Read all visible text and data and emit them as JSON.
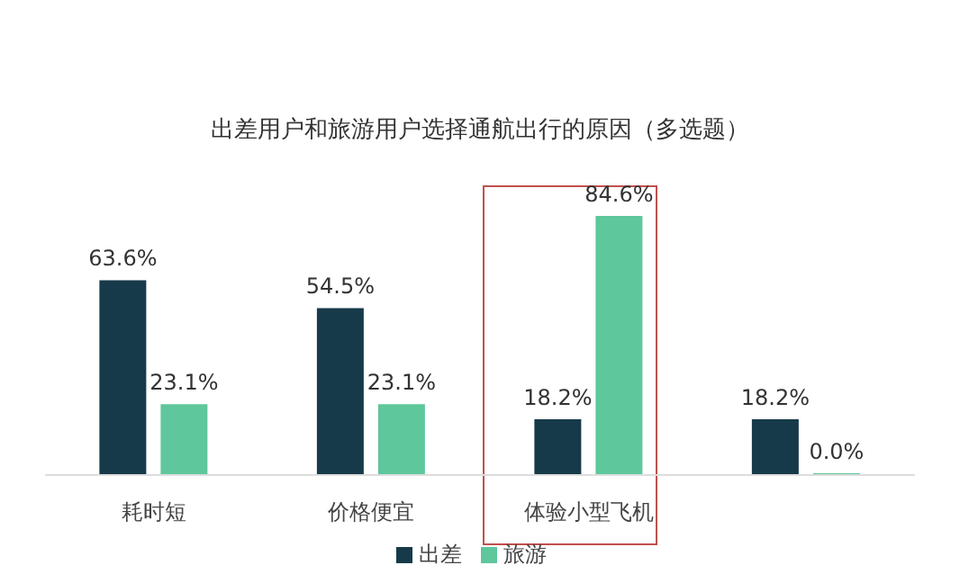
{
  "chart_data": {
    "type": "bar",
    "title": "出差用户和旅游用户选择通航出行的原因（多选题）",
    "categories": [
      "耗时短",
      "价格便宜",
      "体验小型飞机",
      null
    ],
    "series": [
      {
        "name": "出差",
        "color": "#173a4a",
        "values": [
          63.6,
          54.5,
          18.2,
          18.2
        ],
        "value_labels": [
          "63.6%",
          "54.5%",
          "18.2%",
          "18.2%"
        ]
      },
      {
        "name": "旅游",
        "color": "#5fc79c",
        "values": [
          23.1,
          23.1,
          84.6,
          0
        ],
        "value_labels": [
          "23.1%",
          "23.1%",
          "84.6%",
          "0.0%"
        ]
      }
    ],
    "legend": "bottom",
    "grid": false
  }
}
